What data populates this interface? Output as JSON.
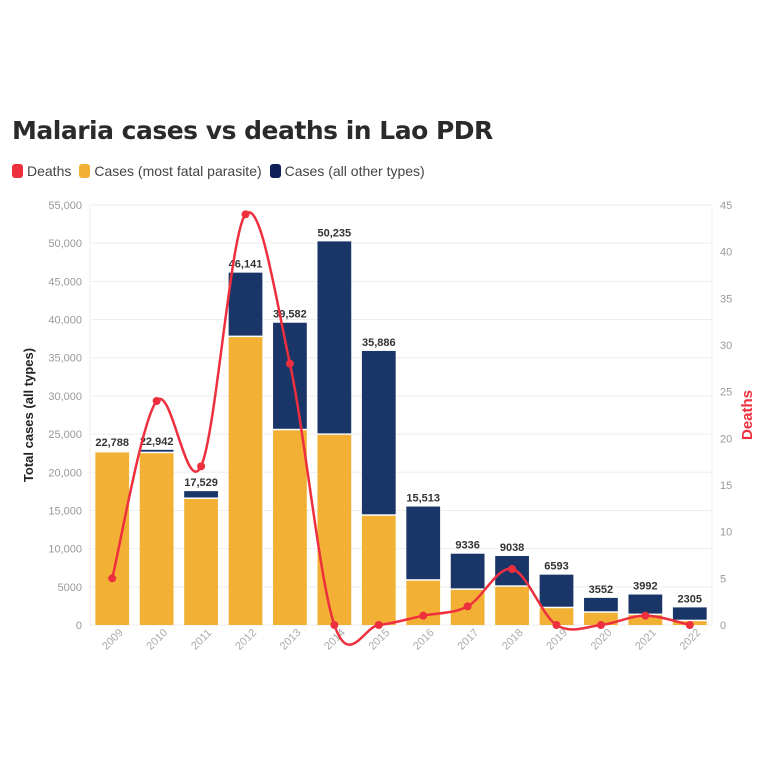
{
  "chart_data": {
    "type": "bar",
    "title": "Malaria cases vs deaths in Lao PDR",
    "categories": [
      "2009",
      "2010",
      "2011",
      "2012",
      "2013",
      "2014",
      "2015",
      "2016",
      "2017",
      "2018",
      "2019",
      "2020",
      "2021",
      "2022"
    ],
    "totals": [
      22788,
      22942,
      17529,
      46141,
      39582,
      50235,
      35886,
      15513,
      9336,
      9038,
      6593,
      3552,
      3992,
      2305
    ],
    "total_labels": [
      "22,788",
      "22,942",
      "17,529",
      "46,141",
      "39,582",
      "50,235",
      "35,886",
      "15,513",
      "9336",
      "9038",
      "6593",
      "3552",
      "3992",
      "2305"
    ],
    "series": [
      {
        "name": "Cases (most fatal parasite)",
        "type": "bar",
        "color": "#f2b134",
        "values": [
          22600,
          22500,
          16500,
          37700,
          25500,
          24900,
          14300,
          5800,
          4600,
          5000,
          2200,
          1600,
          1300,
          500
        ]
      },
      {
        "name": "Cases (all other types)",
        "type": "bar",
        "color": "#1a3668",
        "values": [
          188,
          442,
          1029,
          8441,
          14082,
          25335,
          21586,
          9713,
          4736,
          4038,
          4393,
          1952,
          2692,
          1805
        ]
      },
      {
        "name": "Deaths",
        "type": "line",
        "axis": "right",
        "color": "#ee2f3e",
        "values": [
          5,
          24,
          17,
          44,
          28,
          0,
          0,
          1,
          2,
          6,
          0,
          0,
          1,
          0
        ]
      }
    ],
    "ylabel": "Total cases (all types)",
    "ylabel_right": "Deaths",
    "ylim": [
      0,
      55000
    ],
    "yticks": [
      "0",
      "5000",
      "10,000",
      "15,000",
      "20,000",
      "25,000",
      "30,000",
      "35,000",
      "40,000",
      "45,000",
      "50,000",
      "55,000"
    ],
    "ylim_right": [
      0,
      45
    ],
    "yticks_right": [
      "0",
      "5",
      "10",
      "15",
      "20",
      "25",
      "30",
      "35",
      "40",
      "45"
    ],
    "grid": true,
    "legend": "top-left"
  }
}
